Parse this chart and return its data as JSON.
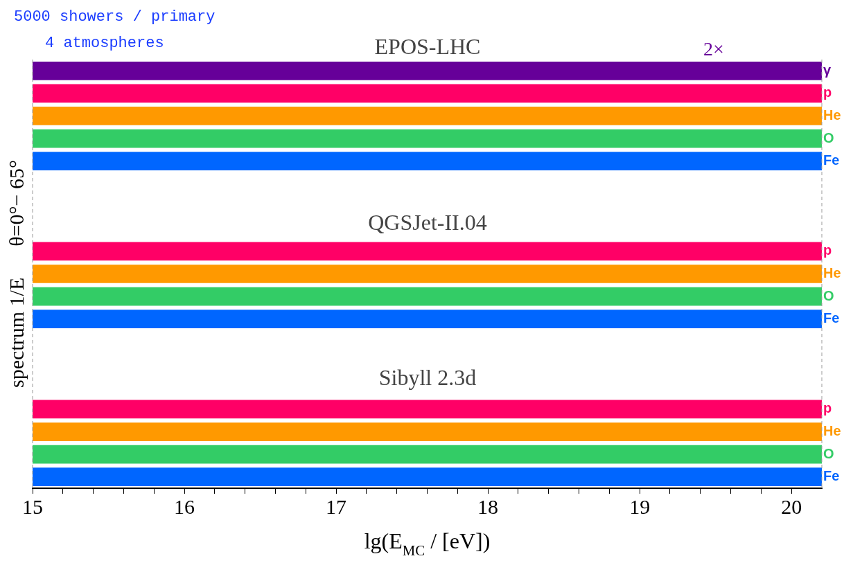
{
  "chart_data": {
    "type": "bar",
    "orientation": "horizontal",
    "xlabel": "lg(E$_{MC}$ / [eV])",
    "ylabel": "spectrum 1/E      θ=0°− 65°",
    "annotations": [
      "5000 showers / primary",
      "4 atmospheres",
      "EPOS-LHC",
      "2×",
      "QGSJet-II.04",
      "Sibyll 2.3d"
    ],
    "categories": [
      "γ",
      "p",
      "He",
      "O",
      "Fe",
      null,
      null,
      null,
      "p",
      "He",
      "O",
      "Fe",
      null,
      null,
      null,
      "p",
      "He",
      "O",
      "Fe"
    ],
    "values": [
      5.2,
      5.2,
      5.2,
      5.2,
      5.2,
      null,
      null,
      null,
      5.2,
      5.2,
      5.2,
      5.2,
      null,
      null,
      null,
      5.2,
      5.2,
      5.2,
      5.2
    ],
    "base": [
      15,
      15,
      15,
      15,
      15,
      null,
      null,
      null,
      15,
      15,
      15,
      15,
      null,
      null,
      null,
      15,
      15,
      15,
      15
    ],
    "colors": [
      "#660099",
      "#ff0066",
      "#ff9900",
      "#33cc66",
      "#0066ff",
      null,
      null,
      null,
      "#ff0066",
      "#ff9900",
      "#33cc66",
      "#0066ff",
      null,
      null,
      null,
      "#ff0066",
      "#ff9900",
      "#33cc66",
      "#0066ff"
    ],
    "xlim": [
      15,
      20.2
    ],
    "xticks": [
      15,
      {
        "value": 15.2,
        "label": null
      },
      {
        "value": 15.4,
        "label": null
      },
      {
        "value": 15.6,
        "label": null
      },
      {
        "value": 15.8,
        "label": null
      },
      16,
      {
        "value": 16.2,
        "label": null
      },
      {
        "value": 16.4,
        "label": null
      },
      {
        "value": 16.6,
        "label": null
      },
      {
        "value": 16.8,
        "label": null
      },
      17,
      {
        "value": 17.2,
        "label": null
      },
      {
        "value": 17.4,
        "label": null
      },
      {
        "value": 17.6,
        "label": null
      },
      {
        "value": 17.8,
        "label": null
      },
      18,
      {
        "value": 18.2,
        "label": null
      },
      {
        "value": 18.4,
        "label": null
      },
      {
        "value": 18.6,
        "label": null
      },
      {
        "value": 18.8,
        "label": null
      },
      19,
      {
        "value": 19.2,
        "label": null
      },
      {
        "value": 19.4,
        "label": null
      },
      {
        "value": 19.6,
        "label": null
      },
      {
        "value": 19.8,
        "label": null
      },
      20
    ],
    "grid": false,
    "legend": false
  }
}
